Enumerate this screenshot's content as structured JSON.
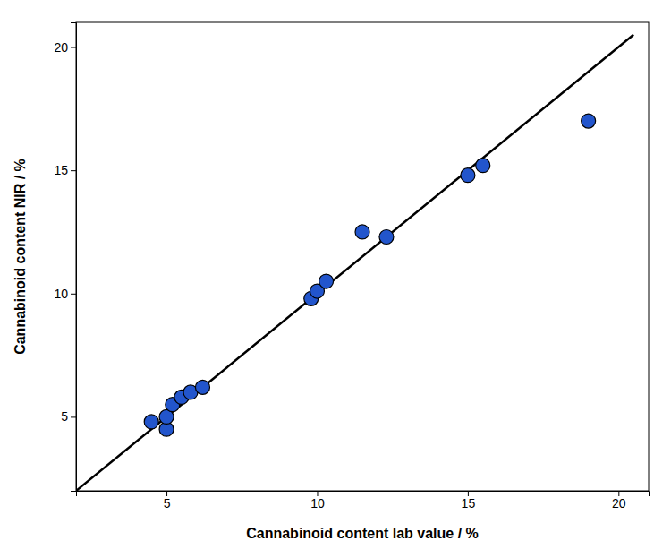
{
  "chart_data": {
    "type": "scatter",
    "xlabel": "Cannabinoid content lab value / %",
    "ylabel": "Cannabinoid content NIR / %",
    "xlim": [
      2,
      21
    ],
    "ylim": [
      2,
      21
    ],
    "xticks": [
      5,
      10,
      15,
      20
    ],
    "yticks": [
      5,
      10,
      15,
      20
    ],
    "grid": false,
    "series": [
      {
        "type": "line",
        "color": "#000000",
        "x": [
          2.0,
          20.5
        ],
        "values": [
          2.0,
          20.5
        ]
      },
      {
        "type": "scatter",
        "color": "#2255cc",
        "x": [
          4.5,
          5.0,
          5.0,
          5.2,
          5.5,
          5.8,
          6.2,
          9.8,
          10.0,
          10.3,
          11.5,
          12.3,
          15.0,
          15.5,
          19.0
        ],
        "values": [
          4.8,
          4.5,
          5.0,
          5.5,
          5.8,
          6.0,
          6.2,
          9.8,
          10.1,
          10.5,
          12.5,
          12.3,
          14.8,
          15.2,
          17.0
        ]
      }
    ]
  }
}
